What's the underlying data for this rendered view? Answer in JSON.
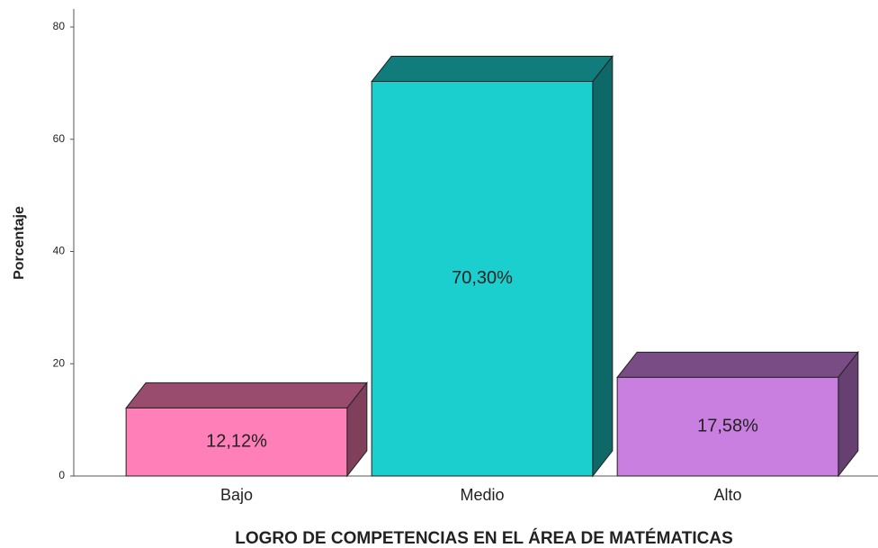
{
  "chart_data": {
    "type": "bar3d",
    "xlabel": "LOGRO DE COMPETENCIAS EN EL ÁREA DE MATÉMATICAS",
    "ylabel": "Porcentaje",
    "categories": [
      "Bajo",
      "Medio",
      "Alto"
    ],
    "values": [
      12.12,
      70.3,
      17.58
    ],
    "value_labels": [
      "12,12%",
      "70,30%",
      "17,58%"
    ],
    "colors": [
      "#ff7fb8",
      "#1ccfcf",
      "#c97fe0"
    ],
    "ylim": [
      0,
      80
    ],
    "yticks": [
      0,
      20,
      40,
      60,
      80
    ],
    "grid": false
  }
}
